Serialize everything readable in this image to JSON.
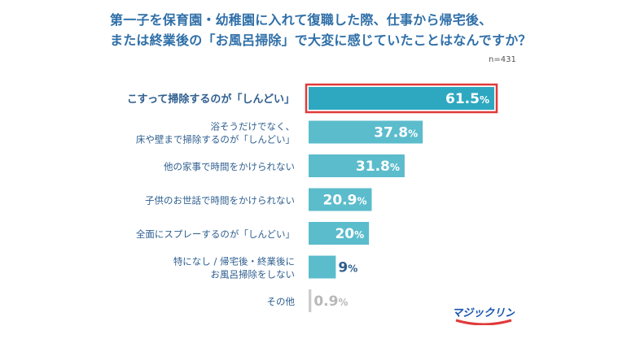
{
  "title_lines": [
    "第一子を保育園・幼稚園に入れて復職した際、仕事から帰宅後、",
    "または終業後の「お風呂掃除」で大変に感じていたことはなんですか？"
  ],
  "sample_size": "n=431",
  "logo_text": "マジックリン",
  "colors": {
    "bar": "#5bbccc",
    "bar_top": "#2ea8c0",
    "bar_other": "#cccccc",
    "highlight_border": "#e03a3a",
    "title": "#2f6fa8",
    "label": "#2f5f8f"
  },
  "chart_data": {
    "type": "bar",
    "orientation": "horizontal",
    "categories": [
      [
        "こすって掃除するのが「しんどい」"
      ],
      [
        "浴そうだけでなく、",
        "床や壁まで掃除するのが「しんどい」"
      ],
      [
        "他の家事で時間をかけられない"
      ],
      [
        "子供のお世話で時間をかけられない"
      ],
      [
        "全面にスプレーするのが「しんどい」"
      ],
      [
        "特になし / 帰宅後・終業後に",
        "お風呂掃除をしない"
      ],
      [
        "その他"
      ]
    ],
    "values": [
      61.5,
      37.8,
      31.8,
      20.9,
      20,
      9,
      0.9
    ],
    "value_labels": [
      "61.5",
      "37.8",
      "31.8",
      "20.9",
      "20",
      "9",
      "0.9"
    ],
    "unit": "%",
    "highlighted_index": 0,
    "xlim": [
      0,
      61.5
    ]
  }
}
